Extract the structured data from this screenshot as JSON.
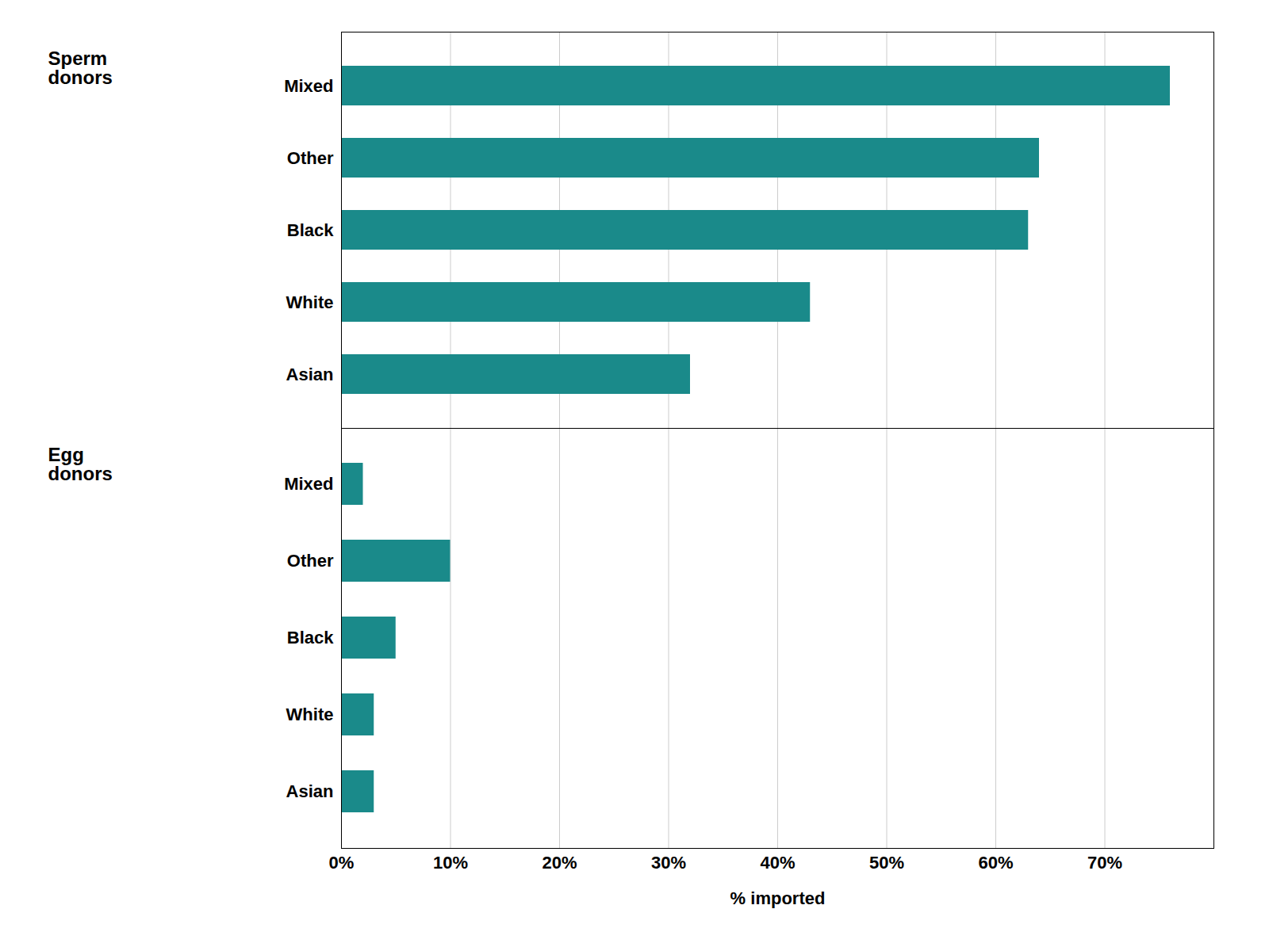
{
  "chart_data": [
    {
      "type": "bar",
      "orientation": "horizontal",
      "categories": [
        "Mixed",
        "Other",
        "Black",
        "White",
        "Asian"
      ],
      "values": [
        76,
        64,
        63,
        43,
        32
      ],
      "color": "#1a8a8a",
      "xlim": [
        0,
        80
      ],
      "xticks": [
        0,
        10,
        20,
        30,
        40,
        50,
        60,
        70
      ],
      "grid": true,
      "tick_labels": "y",
      "annotations": [
        "Sperm\ndonors"
      ]
    },
    {
      "type": "bar",
      "orientation": "horizontal",
      "categories": [
        "Mixed",
        "Other",
        "Black",
        "White",
        "Asian"
      ],
      "values": [
        2,
        10,
        5,
        3,
        3
      ],
      "color": "#1a8a8a",
      "xlabel": "% imported",
      "xlim": [
        0,
        80
      ],
      "xticks": [
        {
          "value": 0,
          "label": "0%"
        },
        {
          "value": 10,
          "label": "10%"
        },
        {
          "value": 20,
          "label": "20%"
        },
        {
          "value": 30,
          "label": "30%"
        },
        {
          "value": 40,
          "label": "40%"
        },
        {
          "value": 50,
          "label": "50%"
        },
        {
          "value": 60,
          "label": "60%"
        },
        {
          "value": 70,
          "label": "70%"
        }
      ],
      "grid": true,
      "annotations": [
        "Egg\ndonors"
      ]
    }
  ]
}
